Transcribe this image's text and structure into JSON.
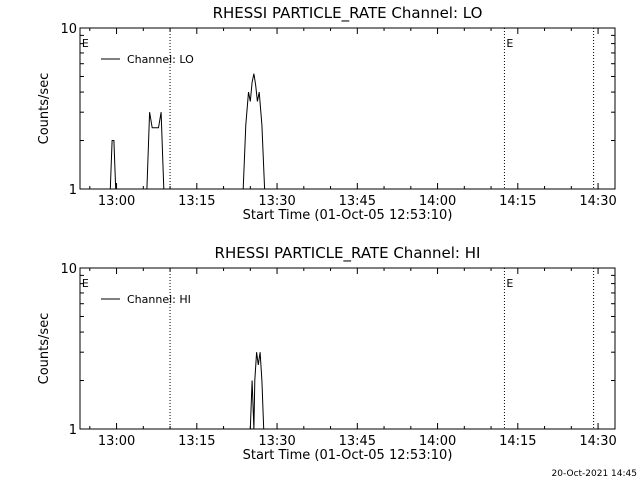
{
  "chart_data": [
    {
      "type": "line",
      "title": "RHESSI PARTICLE_RATE Channel: LO",
      "xlabel": "Start Time (01-Oct-05 12:53:10)",
      "ylabel": "Counts/sec",
      "yscale": "log",
      "ylim": [
        1,
        10
      ],
      "xlim": [
        "12:53:10",
        "14:33:10"
      ],
      "x_ticks": [
        "13:00",
        "13:15",
        "13:30",
        "13:45",
        "14:00",
        "14:15",
        "14:30"
      ],
      "y_ticks": [
        "1",
        "10"
      ],
      "legend": "top-left",
      "grid": false,
      "series": [
        {
          "name": "Channel: LO",
          "color": "#000000",
          "points": [
            [
              "12:58:50",
              1
            ],
            [
              "12:59:10",
              2
            ],
            [
              "12:59:30",
              2
            ],
            [
              "12:59:50",
              1
            ],
            [
              "13:05:40",
              1
            ],
            [
              "13:06:10",
              3
            ],
            [
              "13:06:40",
              2.4
            ],
            [
              "13:07:20",
              2.4
            ],
            [
              "13:07:50",
              2.4
            ],
            [
              "13:08:20",
              3
            ],
            [
              "13:08:50",
              1
            ],
            [
              "13:23:40",
              1
            ],
            [
              "13:24:10",
              2.5
            ],
            [
              "13:24:40",
              4
            ],
            [
              "13:25:00",
              3.5
            ],
            [
              "13:25:20",
              4.6
            ],
            [
              "13:25:40",
              5.2
            ],
            [
              "13:26:00",
              4.4
            ],
            [
              "13:26:20",
              3.5
            ],
            [
              "13:26:40",
              4
            ],
            [
              "13:27:10",
              2.5
            ],
            [
              "13:27:40",
              1
            ]
          ]
        }
      ],
      "vlines": [
        "13:10:00",
        "14:12:30",
        "14:29:10"
      ],
      "annotations": [
        {
          "text": "E",
          "x": "12:53:20"
        },
        {
          "text": "E",
          "x": "14:12:40"
        }
      ]
    },
    {
      "type": "line",
      "title": "RHESSI PARTICLE_RATE Channel: HI",
      "xlabel": "Start Time (01-Oct-05 12:53:10)",
      "ylabel": "Counts/sec",
      "yscale": "log",
      "ylim": [
        1,
        10
      ],
      "xlim": [
        "12:53:10",
        "14:33:10"
      ],
      "x_ticks": [
        "13:00",
        "13:15",
        "13:30",
        "13:45",
        "14:00",
        "14:15",
        "14:30"
      ],
      "y_ticks": [
        "1",
        "10"
      ],
      "legend": "top-left",
      "grid": false,
      "series": [
        {
          "name": "Channel: HI",
          "color": "#000000",
          "points": [
            [
              "13:25:00",
              1
            ],
            [
              "13:25:20",
              2
            ],
            [
              "13:25:40",
              1
            ],
            [
              "13:25:50",
              2
            ],
            [
              "13:26:10",
              3
            ],
            [
              "13:26:30",
              2.5
            ],
            [
              "13:26:50",
              3
            ],
            [
              "13:27:10",
              2
            ],
            [
              "13:27:30",
              1
            ]
          ]
        }
      ],
      "vlines": [
        "13:10:00",
        "14:12:30",
        "14:29:10"
      ],
      "annotations": [
        {
          "text": "E",
          "x": "12:53:20"
        },
        {
          "text": "E",
          "x": "14:12:40"
        }
      ]
    }
  ],
  "footer": {
    "timestamp": "20-Oct-2021 14:45"
  }
}
